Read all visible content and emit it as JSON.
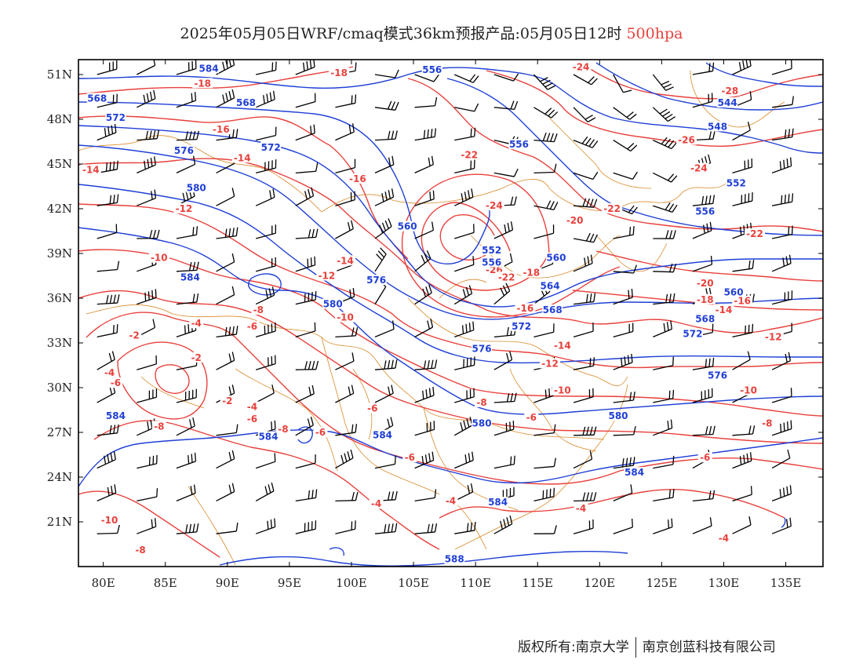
{
  "title": {
    "main": "2025年05月05日WRF/cmaq模式36km预报产品:05月05日12时",
    "level": "500hpa"
  },
  "axes": {
    "lon_range": [
      78,
      138
    ],
    "lat_range": [
      18,
      52
    ],
    "lon_ticks": [
      "80E",
      "85E",
      "90E",
      "95E",
      "100E",
      "105E",
      "110E",
      "115E",
      "120E",
      "125E",
      "130E",
      "135E"
    ],
    "lat_ticks": [
      "51N",
      "48N",
      "45N",
      "42N",
      "39N",
      "36N",
      "33N",
      "30N",
      "27N",
      "24N",
      "21N"
    ]
  },
  "colors": {
    "height_contour": "#1f3fd6",
    "temperature_contour": "#e8413c",
    "borders": "#d98a2b",
    "wind_barb": "#000000"
  },
  "chart_data": {
    "type": "map",
    "variables": [
      "geopotential height (dagpm)",
      "temperature (°C)",
      "wind barbs"
    ],
    "height_labels": [
      {
        "text": "584",
        "lon": 88.5,
        "lat": 51.3
      },
      {
        "text": "556",
        "lon": 106.5,
        "lat": 51.2
      },
      {
        "text": "568",
        "lon": 79.5,
        "lat": 49.3
      },
      {
        "text": "568",
        "lon": 91.5,
        "lat": 49.0
      },
      {
        "text": "572",
        "lon": 81.0,
        "lat": 48.0
      },
      {
        "text": "576",
        "lon": 86.5,
        "lat": 45.8
      },
      {
        "text": "572",
        "lon": 93.5,
        "lat": 46.0
      },
      {
        "text": "556",
        "lon": 113.5,
        "lat": 46.2
      },
      {
        "text": "580",
        "lon": 87.5,
        "lat": 43.3
      },
      {
        "text": "560",
        "lon": 104.5,
        "lat": 40.7
      },
      {
        "text": "552",
        "lon": 111.3,
        "lat": 39.1
      },
      {
        "text": "556",
        "lon": 111.3,
        "lat": 38.3
      },
      {
        "text": "560",
        "lon": 116.5,
        "lat": 38.6
      },
      {
        "text": "584",
        "lon": 87.0,
        "lat": 37.3
      },
      {
        "text": "576",
        "lon": 102.0,
        "lat": 37.1
      },
      {
        "text": "580",
        "lon": 98.5,
        "lat": 35.5
      },
      {
        "text": "564",
        "lon": 116.0,
        "lat": 36.7
      },
      {
        "text": "568",
        "lon": 116.2,
        "lat": 35.1
      },
      {
        "text": "572",
        "lon": 113.7,
        "lat": 34.0
      },
      {
        "text": "548",
        "lon": 129.5,
        "lat": 47.4
      },
      {
        "text": "544",
        "lon": 130.3,
        "lat": 49.0
      },
      {
        "text": "552",
        "lon": 131.0,
        "lat": 43.6
      },
      {
        "text": "556",
        "lon": 128.5,
        "lat": 41.7
      },
      {
        "text": "560",
        "lon": 130.8,
        "lat": 36.3
      },
      {
        "text": "568",
        "lon": 128.5,
        "lat": 34.5
      },
      {
        "text": "572",
        "lon": 127.5,
        "lat": 33.5
      },
      {
        "text": "576",
        "lon": 110.5,
        "lat": 32.5
      },
      {
        "text": "576",
        "lon": 129.5,
        "lat": 30.7
      },
      {
        "text": "584",
        "lon": 81.0,
        "lat": 28.0
      },
      {
        "text": "584",
        "lon": 93.3,
        "lat": 26.6
      },
      {
        "text": "584",
        "lon": 102.5,
        "lat": 26.7
      },
      {
        "text": "580",
        "lon": 110.5,
        "lat": 27.5
      },
      {
        "text": "580",
        "lon": 121.5,
        "lat": 28.0
      },
      {
        "text": "584",
        "lon": 122.8,
        "lat": 24.2
      },
      {
        "text": "584",
        "lon": 111.8,
        "lat": 22.2
      },
      {
        "text": "588",
        "lon": 108.3,
        "lat": 18.4
      }
    ],
    "temperature_labels": [
      {
        "text": "-18",
        "lon": 99.0,
        "lat": 51.0
      },
      {
        "text": "-18",
        "lon": 88.0,
        "lat": 50.3
      },
      {
        "text": "-16",
        "lon": 89.5,
        "lat": 47.2
      },
      {
        "text": "-14",
        "lon": 91.2,
        "lat": 45.3
      },
      {
        "text": "-14",
        "lon": 79.0,
        "lat": 44.5
      },
      {
        "text": "-16",
        "lon": 100.5,
        "lat": 43.9
      },
      {
        "text": "-22",
        "lon": 109.5,
        "lat": 45.5
      },
      {
        "text": "-24",
        "lon": 111.5,
        "lat": 42.1
      },
      {
        "text": "-12",
        "lon": 86.5,
        "lat": 41.9
      },
      {
        "text": "-20",
        "lon": 118.0,
        "lat": 41.1
      },
      {
        "text": "-10",
        "lon": 84.5,
        "lat": 38.6
      },
      {
        "text": "-14",
        "lon": 99.5,
        "lat": 38.4
      },
      {
        "text": "-12",
        "lon": 98.0,
        "lat": 37.4
      },
      {
        "text": "-26",
        "lon": 111.5,
        "lat": 37.8
      },
      {
        "text": "-22",
        "lon": 112.5,
        "lat": 37.3
      },
      {
        "text": "-18",
        "lon": 114.5,
        "lat": 37.6
      },
      {
        "text": "-16",
        "lon": 114.0,
        "lat": 35.2
      },
      {
        "text": "-8",
        "lon": 92.5,
        "lat": 35.1
      },
      {
        "text": "-10",
        "lon": 99.5,
        "lat": 34.6
      },
      {
        "text": "-4",
        "lon": 87.5,
        "lat": 34.2
      },
      {
        "text": "-6",
        "lon": 92.0,
        "lat": 34.0
      },
      {
        "text": "-2",
        "lon": 82.5,
        "lat": 33.4
      },
      {
        "text": "-14",
        "lon": 117.0,
        "lat": 32.7
      },
      {
        "text": "-12",
        "lon": 116.0,
        "lat": 31.5
      },
      {
        "text": "-10",
        "lon": 117.0,
        "lat": 29.7
      },
      {
        "text": "-4",
        "lon": 80.5,
        "lat": 30.9
      },
      {
        "text": "-6",
        "lon": 81.0,
        "lat": 30.2
      },
      {
        "text": "-2",
        "lon": 87.5,
        "lat": 31.9
      },
      {
        "text": "-2",
        "lon": 90.0,
        "lat": 29.0
      },
      {
        "text": "-4",
        "lon": 92.0,
        "lat": 28.6
      },
      {
        "text": "-6",
        "lon": 92.0,
        "lat": 27.8
      },
      {
        "text": "-8",
        "lon": 84.5,
        "lat": 27.3
      },
      {
        "text": "-8",
        "lon": 94.5,
        "lat": 27.1
      },
      {
        "text": "-6",
        "lon": 97.5,
        "lat": 26.9
      },
      {
        "text": "-6",
        "lon": 101.7,
        "lat": 28.5
      },
      {
        "text": "-8",
        "lon": 110.5,
        "lat": 28.9
      },
      {
        "text": "-6",
        "lon": 114.5,
        "lat": 27.9
      },
      {
        "text": "-6",
        "lon": 104.7,
        "lat": 25.2
      },
      {
        "text": "-4",
        "lon": 102.0,
        "lat": 22.1
      },
      {
        "text": "-4",
        "lon": 108.0,
        "lat": 22.3
      },
      {
        "text": "-4",
        "lon": 118.5,
        "lat": 21.8
      },
      {
        "text": "-10",
        "lon": 80.5,
        "lat": 21.0
      },
      {
        "text": "-8",
        "lon": 83.0,
        "lat": 19.0
      },
      {
        "text": "-24",
        "lon": 118.5,
        "lat": 51.4
      },
      {
        "text": "-28",
        "lon": 130.5,
        "lat": 49.8
      },
      {
        "text": "-26",
        "lon": 127.0,
        "lat": 46.5
      },
      {
        "text": "-24",
        "lon": 128.0,
        "lat": 44.6
      },
      {
        "text": "-22",
        "lon": 121.0,
        "lat": 41.9
      },
      {
        "text": "-22",
        "lon": 132.5,
        "lat": 40.2
      },
      {
        "text": "-20",
        "lon": 128.5,
        "lat": 36.9
      },
      {
        "text": "-18",
        "lon": 128.5,
        "lat": 35.8
      },
      {
        "text": "-16",
        "lon": 131.5,
        "lat": 35.7
      },
      {
        "text": "-14",
        "lon": 130.0,
        "lat": 35.1
      },
      {
        "text": "-12",
        "lon": 134.0,
        "lat": 33.3
      },
      {
        "text": "-10",
        "lon": 132.0,
        "lat": 29.7
      },
      {
        "text": "-8",
        "lon": 133.5,
        "lat": 27.5
      },
      {
        "text": "-6",
        "lon": 128.5,
        "lat": 25.2
      },
      {
        "text": "-4",
        "lon": 130.0,
        "lat": 19.8
      }
    ]
  },
  "footer": {
    "copyright": "版权所有:南京大学",
    "company": "南京创蓝科技有限公司"
  }
}
